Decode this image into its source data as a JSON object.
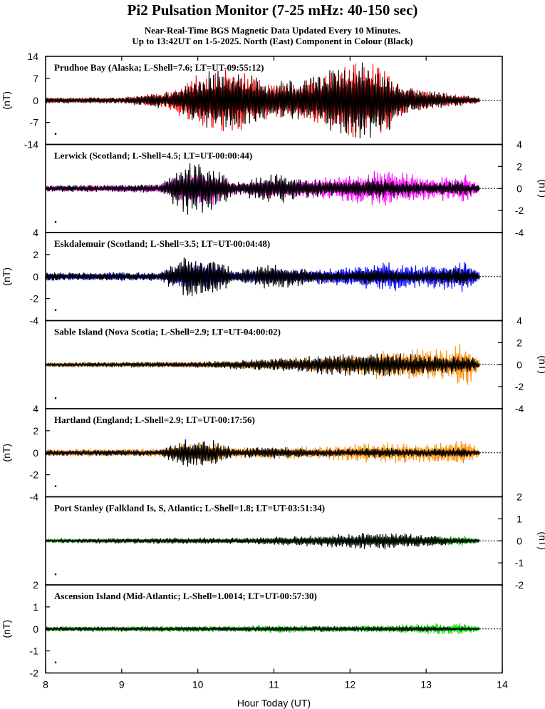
{
  "header": {
    "title": "Pi2 Pulsation Monitor (7-25 mHz: 40-150 sec)",
    "subtitle_line1": "Near-Real-Time BGS Magnetic Data Updated Every 10 Minutes.",
    "subtitle_line2": "Up to 13:42UT on 1-5-2025. North (East) Component in Colour (Black)"
  },
  "chart_data": {
    "type": "line",
    "xlabel": "Hour Today (UT)",
    "xlim": [
      8,
      14
    ],
    "x_ticks": [
      "8",
      "9",
      "10",
      "11",
      "12",
      "13",
      "14"
    ],
    "data_end_hour": 13.7,
    "unit_label": "(nT)",
    "panels": [
      {
        "station": "Prudhoe Bay (Alaska; L-Shell=7.6; LT=UT-09:55:12)",
        "ylim": [
          -14,
          14
        ],
        "y_ticks": [
          -14,
          -7,
          0,
          7,
          14
        ],
        "tick_side": "left",
        "north_color": "#ff0000",
        "east_color": "#000000",
        "north_amplitude_envelope": [
          [
            8.0,
            1.0
          ],
          [
            9.0,
            1.0
          ],
          [
            9.6,
            3.0
          ],
          [
            9.9,
            7.0
          ],
          [
            10.2,
            11.0
          ],
          [
            10.6,
            10.0
          ],
          [
            11.0,
            6.0
          ],
          [
            11.5,
            7.0
          ],
          [
            12.0,
            13.0
          ],
          [
            12.4,
            13.0
          ],
          [
            12.8,
            4.0
          ],
          [
            13.7,
            1.0
          ]
        ],
        "east_amplitude_envelope": [
          [
            8.0,
            1.0
          ],
          [
            9.0,
            1.0
          ],
          [
            9.6,
            3.0
          ],
          [
            9.9,
            6.0
          ],
          [
            10.2,
            10.0
          ],
          [
            10.6,
            9.0
          ],
          [
            11.0,
            6.0
          ],
          [
            11.5,
            8.0
          ],
          [
            12.0,
            13.0
          ],
          [
            12.4,
            12.0
          ],
          [
            12.8,
            4.0
          ],
          [
            13.7,
            1.0
          ]
        ]
      },
      {
        "station": "Lerwick (Scotland; L-Shell=4.5; LT=UT-00:00:44)",
        "ylim": [
          -4,
          4
        ],
        "y_ticks": [
          -4,
          -2,
          0,
          2,
          4
        ],
        "tick_side": "right",
        "north_color": "#ff00ff",
        "east_color": "#000000",
        "north_amplitude_envelope": [
          [
            8.0,
            0.3
          ],
          [
            9.5,
            0.4
          ],
          [
            9.85,
            1.5
          ],
          [
            10.15,
            1.7
          ],
          [
            10.5,
            0.5
          ],
          [
            11.0,
            0.9
          ],
          [
            11.5,
            0.9
          ],
          [
            12.0,
            1.3
          ],
          [
            12.4,
            1.8
          ],
          [
            13.0,
            1.1
          ],
          [
            13.5,
            1.4
          ],
          [
            13.7,
            0.4
          ]
        ],
        "east_amplitude_envelope": [
          [
            8.0,
            0.3
          ],
          [
            9.5,
            0.4
          ],
          [
            9.85,
            2.5
          ],
          [
            10.15,
            2.3
          ],
          [
            10.5,
            0.6
          ],
          [
            11.0,
            1.5
          ],
          [
            11.5,
            0.8
          ],
          [
            12.0,
            0.8
          ],
          [
            12.4,
            1.0
          ],
          [
            13.0,
            0.6
          ],
          [
            13.5,
            0.8
          ],
          [
            13.7,
            0.3
          ]
        ]
      },
      {
        "station": "Eskdalemuir (Scotland; L-Shell=3.5; LT=UT-00:04:48)",
        "ylim": [
          -4,
          4
        ],
        "y_ticks": [
          -4,
          -2,
          0,
          2,
          4
        ],
        "tick_side": "left",
        "north_color": "#0000ff",
        "east_color": "#000000",
        "north_amplitude_envelope": [
          [
            8.0,
            0.4
          ],
          [
            9.5,
            0.4
          ],
          [
            9.85,
            1.2
          ],
          [
            10.15,
            1.4
          ],
          [
            10.5,
            0.5
          ],
          [
            11.0,
            0.8
          ],
          [
            11.5,
            0.7
          ],
          [
            12.0,
            1.0
          ],
          [
            12.4,
            1.5
          ],
          [
            13.0,
            1.1
          ],
          [
            13.5,
            1.5
          ],
          [
            13.7,
            0.4
          ]
        ],
        "east_amplitude_envelope": [
          [
            8.0,
            0.4
          ],
          [
            9.5,
            0.4
          ],
          [
            9.85,
            2.2
          ],
          [
            10.15,
            2.0
          ],
          [
            10.5,
            0.6
          ],
          [
            11.0,
            1.3
          ],
          [
            11.5,
            0.7
          ],
          [
            12.0,
            0.6
          ],
          [
            12.4,
            0.8
          ],
          [
            13.0,
            0.6
          ],
          [
            13.5,
            0.9
          ],
          [
            13.7,
            0.3
          ]
        ]
      },
      {
        "station": "Sable Island (Nova Scotia; L-Shell=2.9; LT=UT-04:00:02)",
        "ylim": [
          -4,
          4
        ],
        "y_ticks": [
          -4,
          -2,
          0,
          2,
          4
        ],
        "tick_side": "right",
        "north_color": "#ff8c00",
        "east_color": "#000000",
        "north_amplitude_envelope": [
          [
            8.0,
            0.2
          ],
          [
            10.0,
            0.3
          ],
          [
            11.0,
            0.5
          ],
          [
            11.8,
            0.8
          ],
          [
            12.3,
            1.3
          ],
          [
            12.8,
            1.5
          ],
          [
            13.3,
            1.5
          ],
          [
            13.55,
            2.3
          ],
          [
            13.7,
            0.4
          ]
        ],
        "east_amplitude_envelope": [
          [
            8.0,
            0.2
          ],
          [
            10.0,
            0.3
          ],
          [
            11.0,
            0.6
          ],
          [
            11.8,
            1.0
          ],
          [
            12.3,
            1.2
          ],
          [
            12.8,
            1.0
          ],
          [
            13.3,
            0.8
          ],
          [
            13.55,
            1.0
          ],
          [
            13.7,
            0.3
          ]
        ]
      },
      {
        "station": "Hartland (England; L-Shell=2.9; LT=UT-00:17:56)",
        "ylim": [
          -4,
          4
        ],
        "y_ticks": [
          -4,
          -2,
          0,
          2,
          4
        ],
        "tick_side": "left",
        "north_color": "#ff8c00",
        "east_color": "#000000",
        "north_amplitude_envelope": [
          [
            8.0,
            0.4
          ],
          [
            9.5,
            0.4
          ],
          [
            9.85,
            0.9
          ],
          [
            10.15,
            1.0
          ],
          [
            10.5,
            0.5
          ],
          [
            11.0,
            0.6
          ],
          [
            11.5,
            0.6
          ],
          [
            12.0,
            0.8
          ],
          [
            12.4,
            1.0
          ],
          [
            13.0,
            0.9
          ],
          [
            13.5,
            1.4
          ],
          [
            13.7,
            0.3
          ]
        ],
        "east_amplitude_envelope": [
          [
            8.0,
            0.3
          ],
          [
            9.5,
            0.3
          ],
          [
            9.85,
            1.4
          ],
          [
            10.15,
            1.3
          ],
          [
            10.5,
            0.4
          ],
          [
            11.0,
            0.6
          ],
          [
            11.5,
            0.4
          ],
          [
            12.0,
            0.4
          ],
          [
            12.4,
            0.5
          ],
          [
            13.0,
            0.4
          ],
          [
            13.5,
            0.5
          ],
          [
            13.7,
            0.2
          ]
        ]
      },
      {
        "station": "Port Stanley (Falkland Is, S, Atlantic; L-Shell=1.8; LT=UT-03:51:34)",
        "ylim": [
          -2,
          2
        ],
        "y_ticks": [
          -2,
          -1,
          0,
          1,
          2
        ],
        "tick_side": "right",
        "north_color": "#00dd00",
        "east_color": "#000000",
        "north_amplitude_envelope": [
          [
            8.0,
            0.08
          ],
          [
            10.0,
            0.1
          ],
          [
            11.0,
            0.12
          ],
          [
            12.0,
            0.15
          ],
          [
            12.5,
            0.2
          ],
          [
            13.0,
            0.2
          ],
          [
            13.5,
            0.25
          ],
          [
            13.7,
            0.05
          ]
        ],
        "east_amplitude_envelope": [
          [
            8.0,
            0.08
          ],
          [
            9.8,
            0.15
          ],
          [
            10.5,
            0.15
          ],
          [
            11.0,
            0.2
          ],
          [
            11.6,
            0.3
          ],
          [
            12.0,
            0.35
          ],
          [
            12.3,
            0.45
          ],
          [
            12.6,
            0.4
          ],
          [
            13.0,
            0.3
          ],
          [
            13.7,
            0.1
          ]
        ]
      },
      {
        "station": "Ascension Island (Mid-Atlantic; L-Shell=1.0014; LT=UT-00:57:30)",
        "ylim": [
          -2,
          2
        ],
        "y_ticks": [
          -2,
          -1,
          0,
          1,
          2
        ],
        "tick_side": "left",
        "north_color": "#00dd00",
        "east_color": "#000000",
        "north_amplitude_envelope": [
          [
            8.0,
            0.12
          ],
          [
            9.8,
            0.15
          ],
          [
            10.5,
            0.15
          ],
          [
            11.0,
            0.2
          ],
          [
            11.8,
            0.15
          ],
          [
            12.5,
            0.2
          ],
          [
            13.0,
            0.25
          ],
          [
            13.5,
            0.3
          ],
          [
            13.7,
            0.1
          ]
        ],
        "east_amplitude_envelope": [
          [
            8.0,
            0.1
          ],
          [
            10.0,
            0.1
          ],
          [
            11.0,
            0.12
          ],
          [
            12.0,
            0.12
          ],
          [
            13.0,
            0.12
          ],
          [
            13.7,
            0.05
          ]
        ]
      }
    ]
  }
}
